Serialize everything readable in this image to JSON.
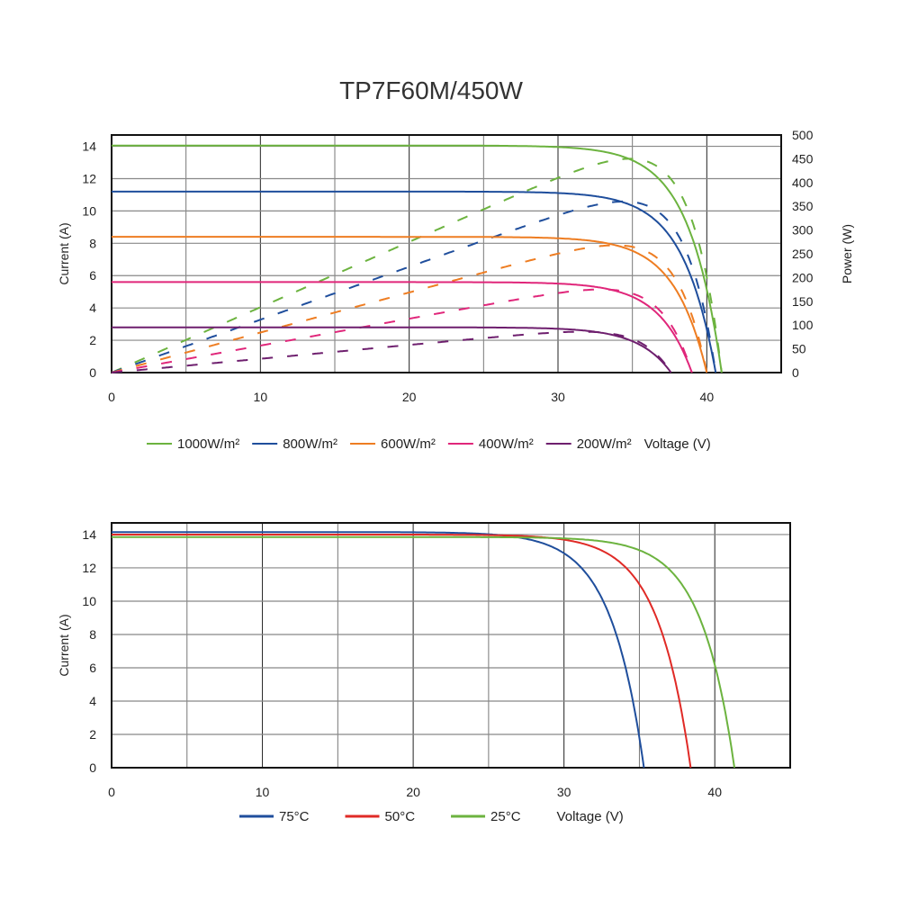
{
  "title": "TP7F60M/450W",
  "chart_data": [
    {
      "type": "line",
      "title": "TP7F60M/450W",
      "xlabel": "Voltage (V)",
      "ylabel": "Current (A)",
      "y2label": "Power (W)",
      "xlim": [
        0,
        45
      ],
      "ylim": [
        0,
        14.7
      ],
      "y2lim": [
        0,
        500
      ],
      "xticks": [
        0,
        10,
        20,
        30,
        40
      ],
      "yticks": [
        0,
        2,
        4,
        6,
        8,
        10,
        12,
        14
      ],
      "y2ticks": [
        0,
        50,
        100,
        150,
        200,
        250,
        300,
        350,
        400,
        450,
        500
      ],
      "grid": true,
      "legend_position": "bottom",
      "series": [
        {
          "name": "1000W/m²",
          "color": "#6cb33f",
          "isc": 14.05,
          "voc": 41.0,
          "pmax": 450
        },
        {
          "name": "800W/m²",
          "color": "#1f4e9c",
          "isc": 11.2,
          "voc": 40.6,
          "pmax": 360
        },
        {
          "name": "600W/m²",
          "color": "#ee7d22",
          "isc": 8.4,
          "voc": 40.0,
          "pmax": 268
        },
        {
          "name": "400W/m²",
          "color": "#e0267a",
          "isc": 5.6,
          "voc": 39.0,
          "pmax": 175
        },
        {
          "name": "200W/m²",
          "color": "#6e1f6e",
          "isc": 2.8,
          "voc": 37.6,
          "pmax": 86
        }
      ],
      "curve_note_legend": "Voltage (V)"
    },
    {
      "type": "line",
      "xlabel": "Voltage (V)",
      "ylabel": "Current (A)",
      "xlim": [
        0,
        45
      ],
      "ylim": [
        0,
        14.7
      ],
      "xticks": [
        0,
        10,
        20,
        30,
        40
      ],
      "yticks": [
        0,
        2,
        4,
        6,
        8,
        10,
        12,
        14
      ],
      "grid": true,
      "legend_position": "bottom",
      "series": [
        {
          "name": "75°C",
          "color": "#1f4e9c",
          "isc": 14.15,
          "voc": 35.3
        },
        {
          "name": "50°C",
          "color": "#e02a26",
          "isc": 14.0,
          "voc": 38.4
        },
        {
          "name": "25°C",
          "color": "#6cb33f",
          "isc": 13.85,
          "voc": 41.3
        }
      ]
    }
  ]
}
